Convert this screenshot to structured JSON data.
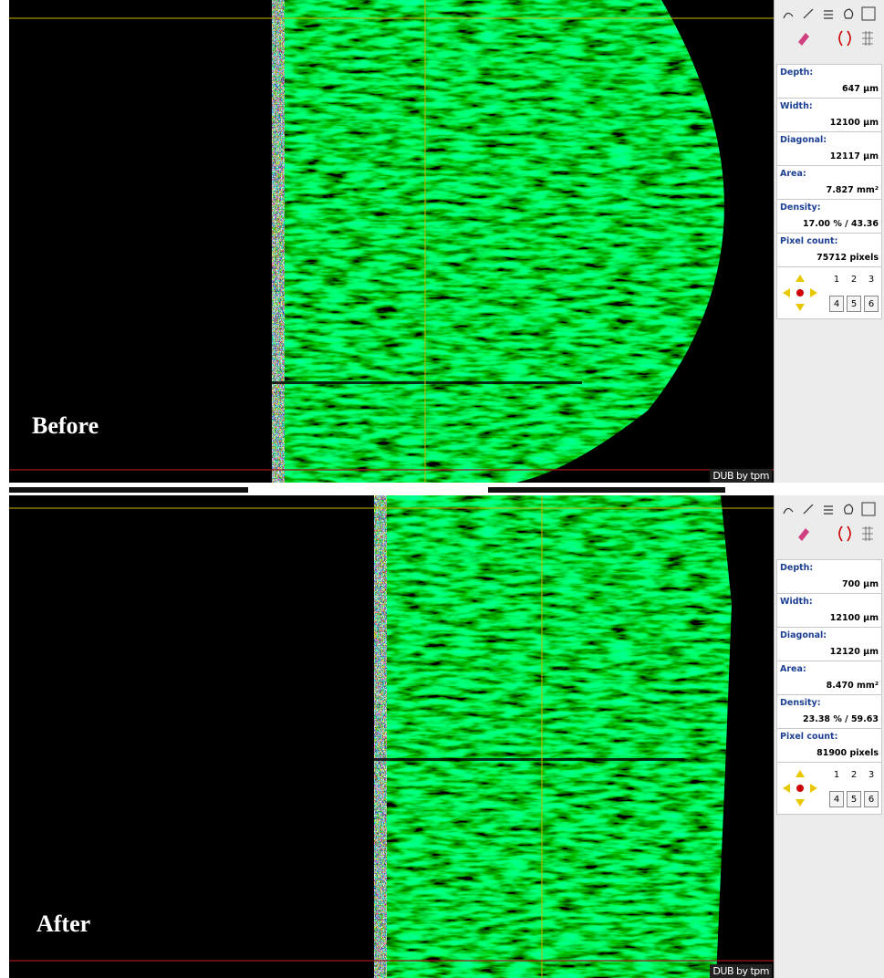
{
  "panels": [
    {
      "label": "Before",
      "watermark": "DUB by tpm",
      "fields": [
        {
          "name": "Depth:",
          "value": "647 µm"
        },
        {
          "name": "Width:",
          "value": "12100 µm"
        },
        {
          "name": "Diagonal:",
          "value": "12117 µm"
        },
        {
          "name": "Area:",
          "value": "7.827 mm²"
        },
        {
          "name": "Density:",
          "value": "17.00 % / 43.36"
        },
        {
          "name": "Pixel count:",
          "value": "75712 pixels"
        }
      ],
      "keypad": [
        "1",
        "2",
        "3",
        "4",
        "5",
        "6"
      ]
    },
    {
      "label": "After",
      "watermark": "DUB by tpm",
      "fields": [
        {
          "name": "Depth:",
          "value": "700 µm"
        },
        {
          "name": "Width:",
          "value": "12100 µm"
        },
        {
          "name": "Diagonal:",
          "value": "12120 µm"
        },
        {
          "name": "Area:",
          "value": "8.470 mm²"
        },
        {
          "name": "Density:",
          "value": "23.38 % / 59.63"
        },
        {
          "name": "Pixel count:",
          "value": "81900 pixels"
        }
      ],
      "keypad": [
        "1",
        "2",
        "3",
        "4",
        "5",
        "6"
      ]
    }
  ]
}
